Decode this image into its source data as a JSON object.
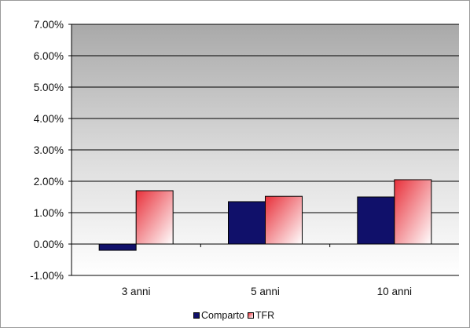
{
  "chart_data": {
    "type": "bar",
    "title": "",
    "xlabel": "",
    "ylabel": "",
    "categories": [
      "3 anni",
      "5 anni",
      "10 anni"
    ],
    "series": [
      {
        "name": "Comparto",
        "values": [
          -0.2,
          1.35,
          1.5
        ],
        "color": "#10106a"
      },
      {
        "name": "TFR",
        "values": [
          1.7,
          1.52,
          2.05
        ],
        "color": "#e8303a"
      }
    ],
    "yticks": [
      "7.00%",
      "6.00%",
      "5.00%",
      "4.00%",
      "3.00%",
      "2.00%",
      "1.00%",
      "0.00%",
      "-1.00%"
    ],
    "ylim": [
      -1,
      7
    ],
    "grid": true,
    "legend": "bottom"
  }
}
